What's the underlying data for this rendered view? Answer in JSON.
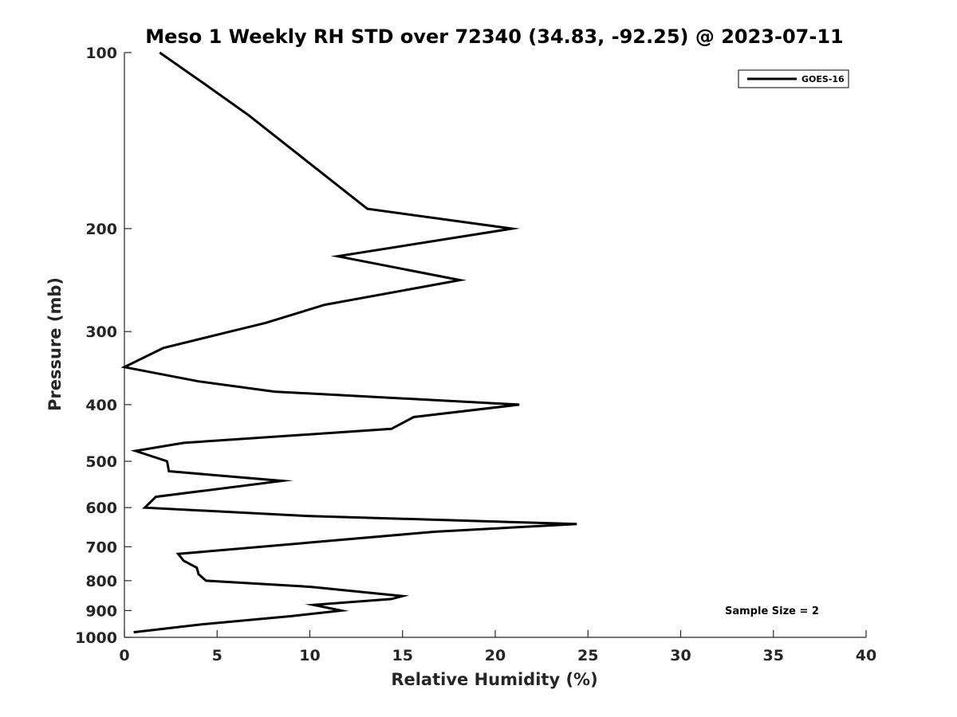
{
  "chart_data": {
    "type": "line",
    "title": "Meso 1 Weekly RH STD over 72340 (34.83, -92.25) @ 2023-07-11",
    "xlabel": "Relative Humidity (%)",
    "ylabel": "Pressure (mb)",
    "xlim": [
      0,
      40
    ],
    "ylim": [
      100,
      1000
    ],
    "y_scale": "log",
    "y_inverted": true,
    "x_ticks": [
      0,
      5,
      10,
      15,
      20,
      25,
      30,
      35,
      40
    ],
    "y_ticks": [
      100,
      200,
      300,
      400,
      500,
      600,
      700,
      800,
      900,
      1000
    ],
    "grid": false,
    "legend_position": "top-right",
    "annotation": "Sample Size = 2",
    "series": [
      {
        "name": "GOES-16",
        "color": "#000000",
        "x": [
          1.9,
          4.3,
          6.7,
          13.1,
          20.9,
          11.5,
          18.1,
          10.8,
          7.6,
          5.7,
          2.1,
          0,
          4,
          8.1,
          21.3,
          15.6,
          14.4,
          3.2,
          0.6,
          2.3,
          2.4,
          8.5,
          1.7,
          1.1,
          9.8,
          24.4,
          16.7,
          10.8,
          2.9,
          3.2,
          3.9,
          4,
          4.4,
          10.1,
          15,
          14.4,
          10.2,
          11.7,
          9,
          4.2,
          0.5
        ],
        "y": [
          100,
          113,
          128,
          185,
          200,
          223,
          245,
          270,
          290,
          300,
          320,
          345,
          365,
          380,
          400,
          420,
          440,
          465,
          480,
          500,
          520,
          540,
          575,
          600,
          620,
          640,
          660,
          685,
          720,
          740,
          760,
          780,
          800,
          820,
          850,
          860,
          880,
          900,
          920,
          950,
          980
        ]
      }
    ]
  }
}
